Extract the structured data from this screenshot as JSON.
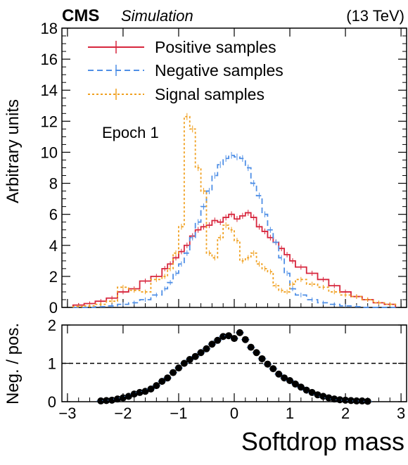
{
  "header": {
    "experiment": "CMS",
    "tag": "Simulation",
    "energy": "(13 TeV)"
  },
  "annotation": "Epoch 1",
  "colors": {
    "positive": "#d7263d",
    "negative": "#4f8fe6",
    "signal": "#f0a020",
    "ratio_points": "#000000"
  },
  "chart_data": [
    {
      "type": "line",
      "xlabel": "Softdrop mass",
      "ylabel": "Arbitrary units",
      "xlim": [
        -3.1,
        3.1
      ],
      "ylim": [
        0,
        18
      ],
      "yticks": [
        0,
        2,
        4,
        6,
        8,
        10,
        12,
        14,
        16,
        18
      ],
      "xticks": [
        -3,
        -2,
        -1,
        0,
        1,
        2,
        3
      ],
      "legend_placement": "top-left",
      "bin_edges": [
        -2.9,
        -2.7,
        -2.5,
        -2.3,
        -2.1,
        -1.9,
        -1.7,
        -1.5,
        -1.3,
        -1.2,
        -1.1,
        -1.0,
        -0.9,
        -0.8,
        -0.7,
        -0.6,
        -0.5,
        -0.4,
        -0.3,
        -0.2,
        -0.1,
        0.0,
        0.1,
        0.2,
        0.3,
        0.4,
        0.5,
        0.6,
        0.7,
        0.8,
        0.9,
        1.0,
        1.1,
        1.3,
        1.5,
        1.7,
        1.9,
        2.1,
        2.3,
        2.5,
        2.7,
        2.9
      ],
      "series": [
        {
          "name": "Positive samples",
          "style": "solid",
          "values": [
            0.15,
            0.25,
            0.4,
            0.6,
            1.0,
            1.2,
            1.7,
            2.0,
            2.5,
            2.8,
            3.2,
            3.6,
            4.0,
            4.6,
            5.0,
            5.2,
            5.3,
            5.6,
            5.5,
            5.8,
            6.0,
            5.7,
            5.9,
            6.1,
            5.8,
            5.2,
            4.9,
            4.5,
            4.2,
            3.8,
            3.4,
            3.0,
            2.6,
            2.2,
            1.8,
            1.4,
            1.0,
            0.7,
            0.5,
            0.3,
            0.2
          ]
        },
        {
          "name": "Negative samples",
          "style": "dashed",
          "values": [
            0.0,
            0.0,
            0.05,
            0.1,
            0.2,
            0.3,
            0.5,
            0.8,
            1.2,
            1.6,
            2.2,
            2.8,
            3.5,
            4.5,
            5.5,
            6.5,
            7.5,
            8.5,
            9.2,
            9.6,
            9.8,
            9.7,
            9.6,
            9.0,
            8.0,
            7.2,
            6.0,
            5.0,
            4.2,
            3.2,
            2.2,
            1.2,
            0.8,
            0.5,
            0.3,
            0.2,
            0.1,
            0.05,
            0.0,
            0.0,
            0.0
          ]
        },
        {
          "name": "Signal samples",
          "style": "dotted",
          "values": [
            0.05,
            0.1,
            0.2,
            0.4,
            1.3,
            1.1,
            1.0,
            1.8,
            2.0,
            2.5,
            3.5,
            5.2,
            12.3,
            11.5,
            9.0,
            7.5,
            3.5,
            3.2,
            4.5,
            5.3,
            5.0,
            4.3,
            3.0,
            3.2,
            3.5,
            2.8,
            2.5,
            2.3,
            1.4,
            1.1,
            1.0,
            1.5,
            1.8,
            1.5,
            1.3,
            1.0,
            0.8,
            0.7,
            0.5,
            0.3,
            0.2
          ]
        }
      ]
    },
    {
      "type": "scatter",
      "xlabel": "Softdrop mass",
      "ylabel": "Neg. / pos.",
      "xlim": [
        -3.1,
        3.1
      ],
      "ylim": [
        0,
        2
      ],
      "yticks": [
        0,
        1,
        2
      ],
      "xticks": [
        -3,
        -2,
        -1,
        0,
        1,
        2,
        3
      ],
      "reference_line": 1,
      "points": {
        "x": [
          -2.4,
          -2.3,
          -2.2,
          -2.1,
          -2.0,
          -1.9,
          -1.8,
          -1.7,
          -1.6,
          -1.5,
          -1.4,
          -1.3,
          -1.2,
          -1.1,
          -1.0,
          -0.9,
          -0.8,
          -0.7,
          -0.6,
          -0.5,
          -0.4,
          -0.3,
          -0.2,
          -0.1,
          0.0,
          0.1,
          0.2,
          0.3,
          0.4,
          0.5,
          0.6,
          0.7,
          0.8,
          0.9,
          1.0,
          1.1,
          1.2,
          1.3,
          1.4,
          1.5,
          1.6,
          1.7,
          1.8,
          1.9,
          2.0,
          2.1,
          2.2,
          2.3,
          2.4
        ],
        "y": [
          0.02,
          0.03,
          0.04,
          0.07,
          0.1,
          0.14,
          0.2,
          0.24,
          0.27,
          0.33,
          0.42,
          0.53,
          0.62,
          0.76,
          0.88,
          1.0,
          1.1,
          1.18,
          1.28,
          1.38,
          1.5,
          1.6,
          1.7,
          1.72,
          1.65,
          1.8,
          1.62,
          1.42,
          1.28,
          1.12,
          0.98,
          0.86,
          0.72,
          0.62,
          0.55,
          0.46,
          0.38,
          0.3,
          0.24,
          0.18,
          0.14,
          0.1,
          0.07,
          0.05,
          0.04,
          0.03,
          0.02,
          0.02,
          0.01
        ]
      }
    }
  ]
}
